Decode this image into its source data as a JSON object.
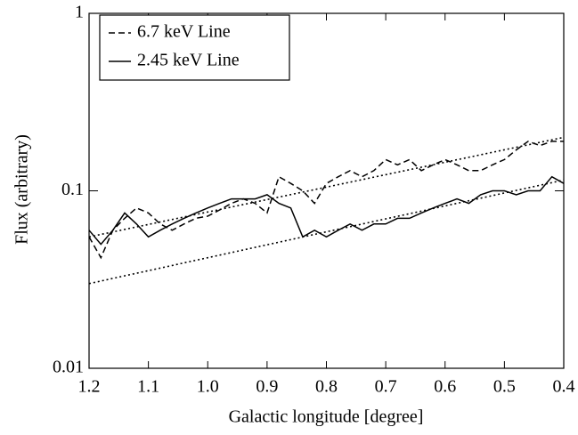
{
  "chart_data": {
    "type": "line",
    "xlabel": "Galactic longitude [degree]",
    "ylabel": "Flux (arbitrary)",
    "xlim": [
      1.2,
      0.4
    ],
    "xticks": [
      1.2,
      1.1,
      {
        "value": 1,
        "label": "1.0"
      },
      0.9,
      0.8,
      0.7,
      0.6,
      0.5,
      0.4
    ],
    "ylim": [
      0.01,
      1
    ],
    "yticks": [
      0.01,
      0.1,
      1
    ],
    "log_y": true,
    "legend": "upper left",
    "x": [
      1.2,
      1.18,
      1.16,
      1.14,
      1.12,
      1.1,
      1.08,
      1.06,
      1.04,
      1.02,
      1.0,
      0.98,
      0.96,
      0.94,
      0.92,
      0.9,
      0.88,
      0.86,
      0.84,
      0.82,
      0.8,
      0.78,
      0.76,
      0.74,
      0.72,
      0.7,
      0.68,
      0.66,
      0.64,
      0.62,
      0.6,
      0.58,
      0.56,
      0.54,
      0.52,
      0.5,
      0.48,
      0.46,
      0.44,
      0.42,
      0.4
    ],
    "series": [
      {
        "name": "6.7 keV Line",
        "color": "#000000",
        "dash": "dashed",
        "values": [
          0.055,
          0.042,
          0.06,
          0.07,
          0.08,
          0.075,
          0.065,
          0.06,
          0.065,
          0.07,
          0.072,
          0.078,
          0.085,
          0.09,
          0.085,
          0.075,
          0.12,
          0.11,
          0.1,
          0.085,
          0.11,
          0.12,
          0.13,
          0.12,
          0.13,
          0.15,
          0.14,
          0.15,
          0.13,
          0.14,
          0.15,
          0.14,
          0.13,
          0.13,
          0.14,
          0.15,
          0.17,
          0.19,
          0.18,
          0.19,
          0.19
        ]
      },
      {
        "name": "2.45 keV Line",
        "color": "#000000",
        "dash": "solid",
        "values": [
          0.06,
          0.05,
          0.06,
          0.075,
          0.065,
          0.055,
          0.06,
          0.065,
          0.07,
          0.075,
          0.08,
          0.085,
          0.09,
          0.09,
          0.09,
          0.095,
          0.085,
          0.08,
          0.055,
          0.06,
          0.055,
          0.06,
          0.065,
          0.06,
          0.065,
          0.065,
          0.07,
          0.07,
          0.075,
          0.08,
          0.085,
          0.09,
          0.085,
          0.095,
          0.1,
          0.1,
          0.095,
          0.1,
          0.1,
          0.12,
          0.11
        ]
      },
      {
        "color": "#000000",
        "dash": "dotted",
        "x": [
          1.2,
          0.4
        ],
        "values": [
          0.055,
          0.2
        ]
      },
      {
        "color": "#000000",
        "dash": "dotted",
        "x": [
          1.2,
          0.4
        ],
        "values": [
          0.03,
          0.115
        ]
      }
    ]
  }
}
